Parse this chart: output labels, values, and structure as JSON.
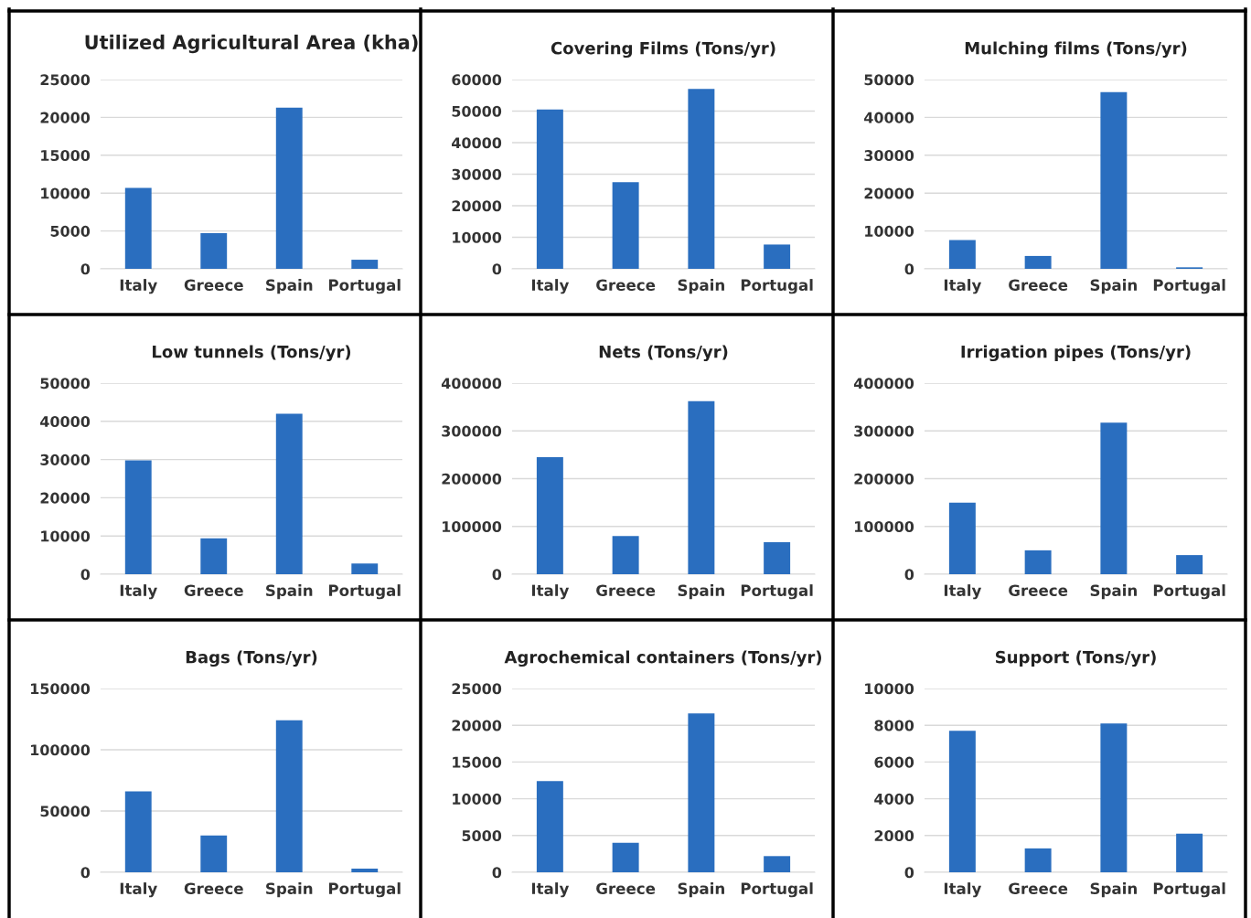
{
  "chart_data": [
    {
      "type": "bar",
      "title": "Utilized Agricultural Area (kha)",
      "categories": [
        "Italy",
        "Greece",
        "Spain",
        "Portugal"
      ],
      "values": [
        10700,
        4700,
        21300,
        1200
      ],
      "color": "#2a6ebf",
      "ylim": [
        0,
        25000
      ],
      "yticks": [
        0,
        5000,
        10000,
        15000,
        20000,
        25000
      ],
      "grid": "y"
    },
    {
      "type": "bar",
      "title": "Covering Films (Tons/yr)",
      "categories": [
        "Italy",
        "Greece",
        "Spain",
        "Portugal"
      ],
      "values": [
        50500,
        27500,
        57000,
        7700
      ],
      "color": "#2a6ebf",
      "ylim": [
        0,
        60000
      ],
      "yticks": [
        0,
        10000,
        20000,
        30000,
        40000,
        50000,
        60000
      ],
      "grid": "y"
    },
    {
      "type": "bar",
      "title": "Mulching films (Tons/yr)",
      "categories": [
        "Italy",
        "Greece",
        "Spain",
        "Portugal"
      ],
      "values": [
        7600,
        3400,
        46700,
        400
      ],
      "color": "#2a6ebf",
      "ylim": [
        0,
        50000
      ],
      "yticks": [
        0,
        10000,
        20000,
        30000,
        40000,
        50000
      ],
      "grid": "y"
    },
    {
      "type": "bar",
      "title": "Low tunnels (Tons/yr)",
      "categories": [
        "Italy",
        "Greece",
        "Spain",
        "Portugal"
      ],
      "values": [
        29800,
        9400,
        42000,
        2800
      ],
      "color": "#2a6ebf",
      "ylim": [
        0,
        50000
      ],
      "yticks": [
        0,
        10000,
        20000,
        30000,
        40000,
        50000
      ],
      "grid": "y"
    },
    {
      "type": "bar",
      "title": "Nets (Tons/yr)",
      "categories": [
        "Italy",
        "Greece",
        "Spain",
        "Portugal"
      ],
      "values": [
        245000,
        80000,
        362000,
        67000
      ],
      "color": "#2a6ebf",
      "ylim": [
        0,
        400000
      ],
      "yticks": [
        0,
        100000,
        200000,
        300000,
        400000
      ],
      "grid": "y"
    },
    {
      "type": "bar",
      "title": "Irrigation pipes (Tons/yr)",
      "categories": [
        "Italy",
        "Greece",
        "Spain",
        "Portugal"
      ],
      "values": [
        150000,
        50000,
        317000,
        40000
      ],
      "color": "#2a6ebf",
      "ylim": [
        0,
        400000
      ],
      "yticks": [
        0,
        100000,
        200000,
        300000,
        400000
      ],
      "grid": "y"
    },
    {
      "type": "bar",
      "title": "Bags (Tons/yr)",
      "categories": [
        "Italy",
        "Greece",
        "Spain",
        "Portugal"
      ],
      "values": [
        66000,
        30000,
        124000,
        3000
      ],
      "color": "#2a6ebf",
      "ylim": [
        0,
        150000
      ],
      "yticks": [
        0,
        50000,
        100000,
        150000
      ],
      "grid": "y"
    },
    {
      "type": "bar",
      "title": "Agrochemical containers (Tons/yr)",
      "categories": [
        "Italy",
        "Greece",
        "Spain",
        "Portugal"
      ],
      "values": [
        12400,
        4000,
        21600,
        2200
      ],
      "color": "#2a6ebf",
      "ylim": [
        0,
        25000
      ],
      "yticks": [
        0,
        5000,
        10000,
        15000,
        20000,
        25000
      ],
      "grid": "y"
    },
    {
      "type": "bar",
      "title": "Support (Tons/yr)",
      "categories": [
        "Italy",
        "Greece",
        "Spain",
        "Portugal"
      ],
      "values": [
        7700,
        1300,
        8100,
        2100
      ],
      "color": "#2a6ebf",
      "ylim": [
        0,
        10000
      ],
      "yticks": [
        0,
        2000,
        4000,
        6000,
        8000,
        10000
      ],
      "grid": "y"
    }
  ]
}
